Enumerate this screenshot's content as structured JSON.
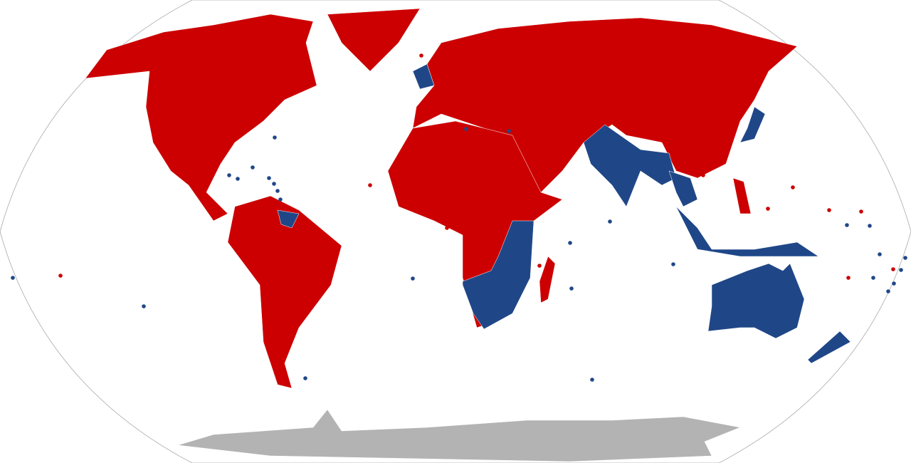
{
  "map": {
    "projection": "Robinson",
    "colors": {
      "right_hand_traffic": "#cc0000",
      "left_hand_traffic": "#1f4788",
      "antarctica": "#b3b3b3",
      "ocean": "#ffffff",
      "border": "#ffffff",
      "outline": "#aaaaaa"
    },
    "categories": [
      "right_hand_traffic",
      "left_hand_traffic",
      "antarctica"
    ]
  }
}
